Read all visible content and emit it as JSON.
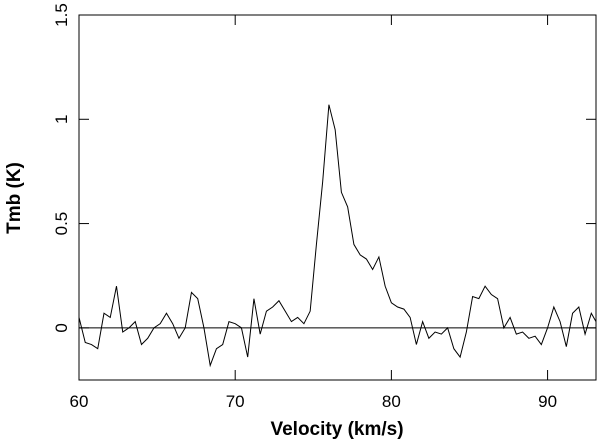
{
  "chart_data": {
    "type": "line",
    "xlabel": "Velocity (km/s)",
    "ylabel": "Tmb (K)",
    "x": [
      60.0,
      60.4,
      60.8,
      61.2,
      61.6,
      62.0,
      62.4,
      62.8,
      63.2,
      63.6,
      64.0,
      64.4,
      64.8,
      65.2,
      65.6,
      66.0,
      66.4,
      66.8,
      67.2,
      67.6,
      68.0,
      68.4,
      68.8,
      69.2,
      69.6,
      70.0,
      70.4,
      70.8,
      71.2,
      71.6,
      72.0,
      72.4,
      72.8,
      73.2,
      73.6,
      74.0,
      74.4,
      74.8,
      75.2,
      75.6,
      76.0,
      76.4,
      76.8,
      77.2,
      77.6,
      78.0,
      78.4,
      78.8,
      79.2,
      79.6,
      80.0,
      80.4,
      80.8,
      81.2,
      81.6,
      82.0,
      82.4,
      82.8,
      83.2,
      83.6,
      84.0,
      84.4,
      84.8,
      85.2,
      85.6,
      86.0,
      86.4,
      86.8,
      87.2,
      87.6,
      88.0,
      88.4,
      88.8,
      89.2,
      89.6,
      90.0,
      90.4,
      90.8,
      91.2,
      91.6,
      92.0,
      92.4,
      92.8,
      93.1
    ],
    "values": [
      0.05,
      -0.07,
      -0.08,
      -0.1,
      0.07,
      0.05,
      0.2,
      -0.02,
      0.0,
      0.03,
      -0.08,
      -0.05,
      0.0,
      0.02,
      0.07,
      0.02,
      -0.05,
      0.0,
      0.17,
      0.14,
      0.0,
      -0.18,
      -0.1,
      -0.08,
      0.03,
      0.02,
      0.0,
      -0.14,
      0.14,
      -0.03,
      0.08,
      0.1,
      0.13,
      0.08,
      0.03,
      0.05,
      0.02,
      0.08,
      0.4,
      0.7,
      1.07,
      0.95,
      0.65,
      0.58,
      0.4,
      0.35,
      0.33,
      0.28,
      0.34,
      0.2,
      0.12,
      0.1,
      0.09,
      0.05,
      -0.08,
      0.03,
      -0.05,
      -0.02,
      -0.03,
      0.0,
      -0.1,
      -0.14,
      -0.02,
      0.15,
      0.14,
      0.2,
      0.16,
      0.14,
      0.0,
      0.05,
      -0.03,
      -0.02,
      -0.05,
      -0.04,
      -0.08,
      0.0,
      0.1,
      0.03,
      -0.09,
      0.07,
      0.1,
      -0.03,
      0.07,
      0.03
    ],
    "color": "#000000",
    "xlim": [
      60,
      93.1
    ],
    "ylim": [
      -0.25,
      1.5
    ],
    "xticks": [
      60,
      70,
      80,
      90
    ],
    "yticks": [
      0,
      0.5,
      1,
      1.5
    ],
    "reference_line": 0
  }
}
